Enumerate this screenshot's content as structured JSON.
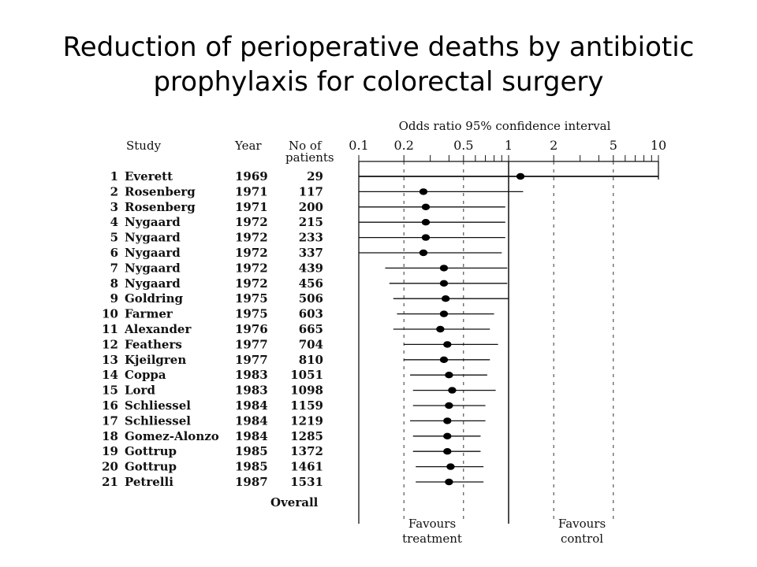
{
  "slide": {
    "title_line1": "Reduction of perioperative deaths by antibiotic",
    "title_line2": "prophylaxis for colorectal surgery"
  },
  "chart_data": {
    "type": "forest",
    "axis_title": "Odds ratio 95% confidence interval",
    "x_scale": "log",
    "xlim": [
      0.1,
      10
    ],
    "x_ticks": [
      "0.1",
      "0.2",
      "0.5",
      "1",
      "2",
      "5",
      "10"
    ],
    "reference_line": 1,
    "columns": {
      "study": "Study",
      "year": "Year",
      "patients_line1": "No of",
      "patients_line2": "patients"
    },
    "studies": [
      {
        "n": "1",
        "name": "Everett",
        "year": "1969",
        "patients": "29",
        "or": 1.2,
        "lo": 0.1,
        "hi": 10
      },
      {
        "n": "2",
        "name": "Rosenberg",
        "year": "1971",
        "patients": "117",
        "or": 0.27,
        "lo": 0.1,
        "hi": 1.25
      },
      {
        "n": "3",
        "name": "Rosenberg",
        "year": "1971",
        "patients": "200",
        "or": 0.28,
        "lo": 0.1,
        "hi": 0.95
      },
      {
        "n": "4",
        "name": "Nygaard",
        "year": "1972",
        "patients": "215",
        "or": 0.28,
        "lo": 0.1,
        "hi": 0.95
      },
      {
        "n": "5",
        "name": "Nygaard",
        "year": "1972",
        "patients": "233",
        "or": 0.28,
        "lo": 0.1,
        "hi": 0.95
      },
      {
        "n": "6",
        "name": "Nygaard",
        "year": "1972",
        "patients": "337",
        "or": 0.27,
        "lo": 0.1,
        "hi": 0.9
      },
      {
        "n": "7",
        "name": "Nygaard",
        "year": "1972",
        "patients": "439",
        "or": 0.37,
        "lo": 0.15,
        "hi": 0.98
      },
      {
        "n": "8",
        "name": "Nygaard",
        "year": "1972",
        "patients": "456",
        "or": 0.37,
        "lo": 0.16,
        "hi": 0.98
      },
      {
        "n": "9",
        "name": "Goldring",
        "year": "1975",
        "patients": "506",
        "or": 0.38,
        "lo": 0.17,
        "hi": 1.0
      },
      {
        "n": "10",
        "name": "Farmer",
        "year": "1975",
        "patients": "603",
        "or": 0.37,
        "lo": 0.18,
        "hi": 0.8
      },
      {
        "n": "11",
        "name": "Alexander",
        "year": "1976",
        "patients": "665",
        "or": 0.35,
        "lo": 0.17,
        "hi": 0.75
      },
      {
        "n": "12",
        "name": "Feathers",
        "year": "1977",
        "patients": "704",
        "or": 0.39,
        "lo": 0.2,
        "hi": 0.85
      },
      {
        "n": "13",
        "name": "Kjeilgren",
        "year": "1977",
        "patients": "810",
        "or": 0.37,
        "lo": 0.2,
        "hi": 0.75
      },
      {
        "n": "14",
        "name": "Coppa",
        "year": "1983",
        "patients": "1051",
        "or": 0.4,
        "lo": 0.22,
        "hi": 0.72
      },
      {
        "n": "15",
        "name": "Lord",
        "year": "1983",
        "patients": "1098",
        "or": 0.42,
        "lo": 0.23,
        "hi": 0.82
      },
      {
        "n": "16",
        "name": "Schliessel",
        "year": "1984",
        "patients": "1159",
        "or": 0.4,
        "lo": 0.23,
        "hi": 0.7
      },
      {
        "n": "17",
        "name": "Schliessel",
        "year": "1984",
        "patients": "1219",
        "or": 0.39,
        "lo": 0.22,
        "hi": 0.7
      },
      {
        "n": "18",
        "name": "Gomez-Alonzo",
        "year": "1984",
        "patients": "1285",
        "or": 0.39,
        "lo": 0.23,
        "hi": 0.65
      },
      {
        "n": "19",
        "name": "Gottrup",
        "year": "1985",
        "patients": "1372",
        "or": 0.39,
        "lo": 0.23,
        "hi": 0.65
      },
      {
        "n": "20",
        "name": "Gottrup",
        "year": "1985",
        "patients": "1461",
        "or": 0.41,
        "lo": 0.24,
        "hi": 0.68
      },
      {
        "n": "21",
        "name": "Petrelli",
        "year": "1987",
        "patients": "1531",
        "or": 0.4,
        "lo": 0.24,
        "hi": 0.68
      }
    ],
    "overall_label": "Overall",
    "favours_left_line1": "Favours",
    "favours_left_line2": "treatment",
    "favours_right_line1": "Favours",
    "favours_right_line2": "control"
  }
}
